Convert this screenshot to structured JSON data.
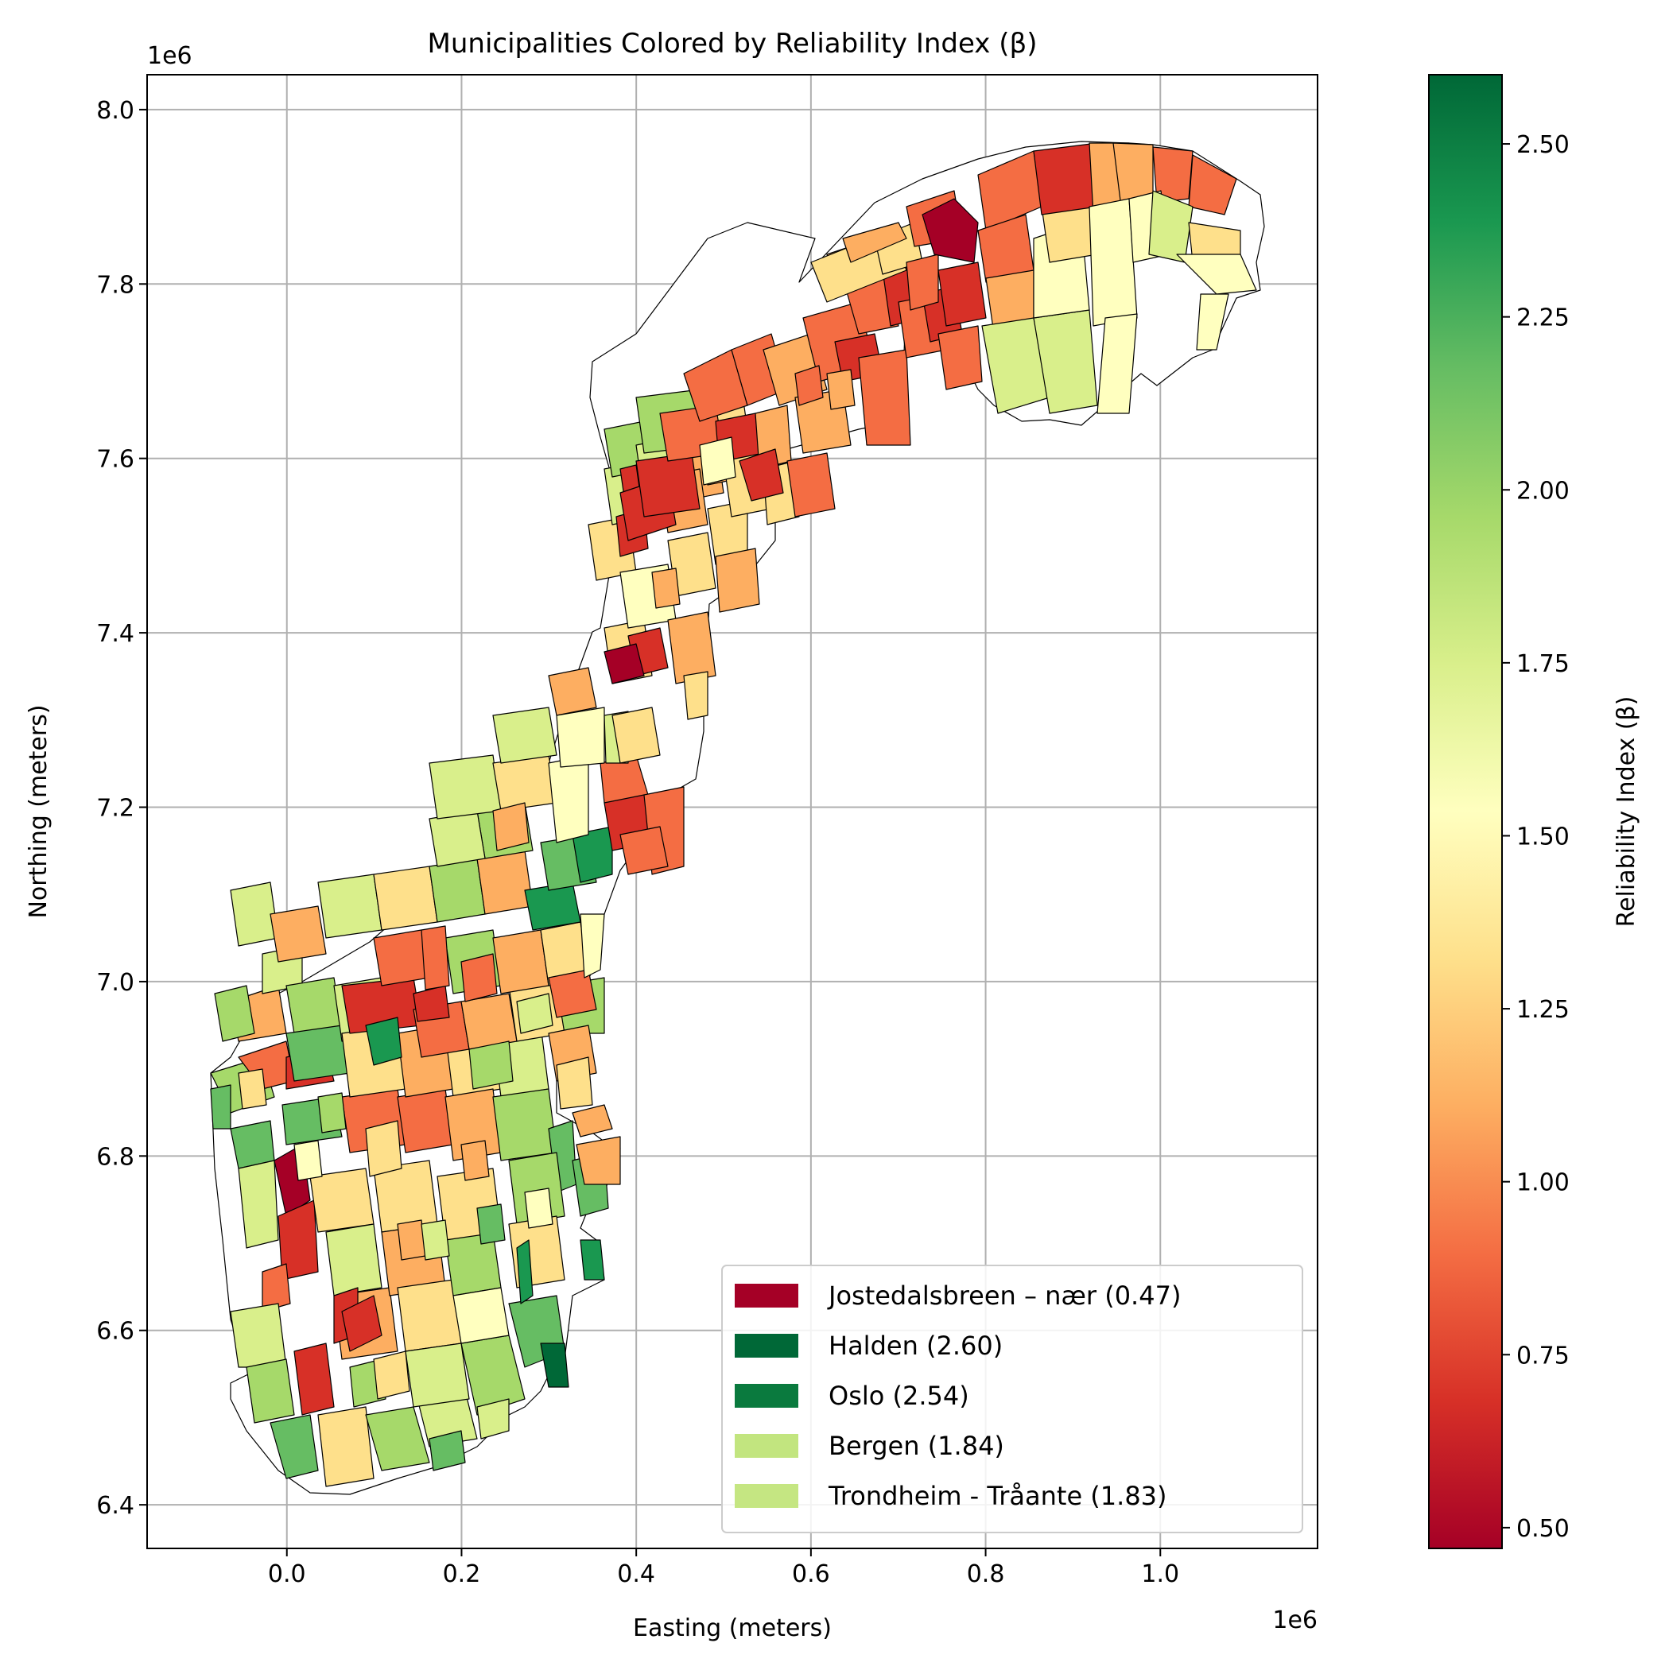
{
  "title": "Municipalities Colored by Reliability Index (β)",
  "x_axis": {
    "label": "Easting (meters)",
    "offset_label": "1e6",
    "ticks": [
      "0.0",
      "0.2",
      "0.4",
      "0.6",
      "0.8",
      "1.0"
    ],
    "tick_values": [
      0.0,
      0.2,
      0.4,
      0.6,
      0.8,
      1.0
    ],
    "range": [
      -0.16,
      1.18
    ]
  },
  "y_axis": {
    "label": "Northing (meters)",
    "offset_label": "1e6",
    "ticks": [
      "6.4",
      "6.6",
      "6.8",
      "7.0",
      "7.2",
      "7.4",
      "7.6",
      "7.8",
      "8.0"
    ],
    "tick_values": [
      6.4,
      6.6,
      6.8,
      7.0,
      7.2,
      7.4,
      7.6,
      7.8,
      8.0
    ],
    "range": [
      6.35,
      8.04
    ]
  },
  "grid": true,
  "colorbar": {
    "label": "Reliability Index (β)",
    "colormap": "RdYlGn",
    "range": [
      0.47,
      2.6
    ],
    "ticks": [
      "0.50",
      "0.75",
      "1.00",
      "1.25",
      "1.50",
      "1.75",
      "2.00",
      "2.25",
      "2.50"
    ],
    "tick_values": [
      0.5,
      0.75,
      1.0,
      1.25,
      1.5,
      1.75,
      2.0,
      2.25,
      2.5
    ]
  },
  "legend": {
    "placement": "lower-right",
    "entries": [
      {
        "label": "Jostedalsbreen – nær (0.47)",
        "color": "#a50026"
      },
      {
        "label": "Halden (2.60)",
        "color": "#006837"
      },
      {
        "label": "Oslo (2.54)",
        "color": "#0a7a3e"
      },
      {
        "label": "Bergen (1.84)",
        "color": "#c2e57f"
      },
      {
        "label": "Trondheim - Tråante (1.83)",
        "color": "#c5e682"
      }
    ]
  },
  "colors": {
    "missing": "#ffffff",
    "outline": "#000000",
    "grid": "#b0b0b0"
  }
}
